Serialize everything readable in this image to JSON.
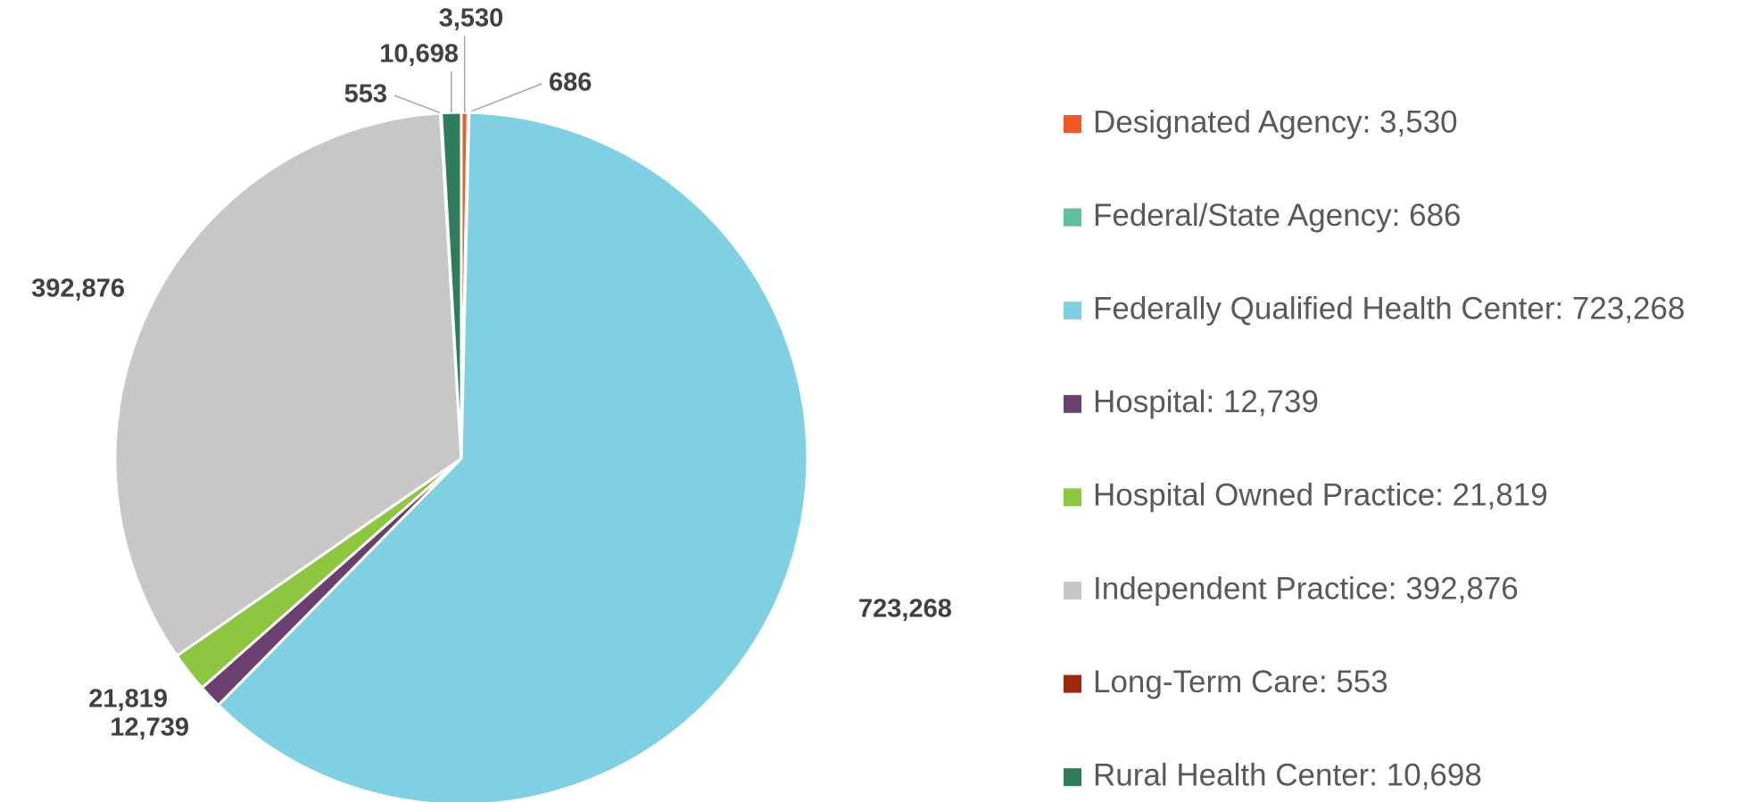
{
  "chart_data": {
    "type": "pie",
    "categories": [
      "Designated Agency: 3,530",
      "Federal/State Agency: 686",
      "Federally Qualified Health Center: 723,268",
      "Hospital: 12,739",
      "Hospital Owned Practice: 21,819",
      "Independent Practice: 392,876",
      "Long-Term Care: 553",
      "Rural Health Center: 10,698"
    ],
    "values": [
      3530,
      686,
      723268,
      12739,
      21819,
      392876,
      553,
      10698
    ],
    "value_labels": [
      "3,530",
      "686",
      "723,268",
      "12,739",
      "21,819",
      "392,876",
      "553",
      "10,698"
    ],
    "colors": [
      "#f15a22",
      "#5fc09a",
      "#7fd0e3",
      "#6b3f6e",
      "#8dc63f",
      "#c8c6c7",
      "#a0290d",
      "#2e7d5b"
    ],
    "legend": "right"
  }
}
